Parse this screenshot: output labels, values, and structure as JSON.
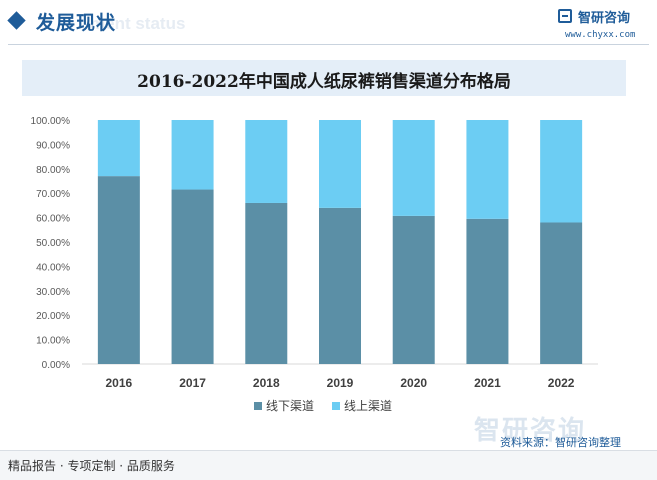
{
  "header": {
    "section_title": "发展现状",
    "section_subtitle": "ment status",
    "brand_name": "智研咨询",
    "brand_url": "www.chyxx.com"
  },
  "chart_data": {
    "type": "bar",
    "stacked": true,
    "title": "2016-2022年中国成人纸尿裤销售渠道分布格局",
    "categories": [
      "2016",
      "2017",
      "2018",
      "2019",
      "2020",
      "2021",
      "2022"
    ],
    "series": [
      {
        "name": "线下渠道",
        "color": "#5b8fa6",
        "values": [
          77.0,
          71.5,
          66.0,
          64.0,
          60.7,
          59.5,
          58.0
        ]
      },
      {
        "name": "线上渠道",
        "color": "#6ccdf3",
        "values": [
          23.0,
          28.5,
          34.0,
          36.0,
          39.3,
          40.5,
          42.0
        ]
      }
    ],
    "y_ticks": [
      "0.00%",
      "10.00%",
      "20.00%",
      "30.00%",
      "40.00%",
      "50.00%",
      "60.00%",
      "70.00%",
      "80.00%",
      "90.00%",
      "100.00%"
    ],
    "ylim": [
      0,
      100
    ],
    "xlabel": "",
    "ylabel": "",
    "grid": false,
    "legend_position": "bottom"
  },
  "watermark": "智研咨询",
  "source_note": "资料来源：智研咨询整理",
  "footer": {
    "tagline": "精品报告 · 专项定制 · 品质服务"
  }
}
